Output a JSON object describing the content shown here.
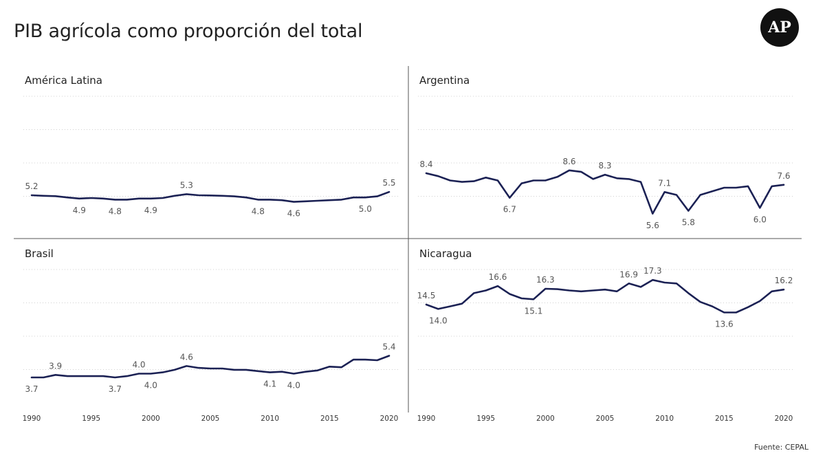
{
  "title": "PIB agrícola como proporción del total",
  "logo": "AP",
  "source": "Fuente: CEPAL",
  "colors": {
    "line": "#1b2154",
    "grid": "#d0d0d0",
    "divider": "#555555",
    "text": "#555555"
  },
  "chart_data": [
    {
      "type": "line",
      "title": "América Latina",
      "x": [
        1990,
        1991,
        1992,
        1993,
        1994,
        1995,
        1996,
        1997,
        1998,
        1999,
        2000,
        2001,
        2002,
        2003,
        2004,
        2005,
        2006,
        2007,
        2008,
        2009,
        2010,
        2011,
        2012,
        2013,
        2014,
        2015,
        2016,
        2017,
        2018,
        2019,
        2020
      ],
      "values": [
        5.2,
        5.15,
        5.12,
        5.0,
        4.9,
        4.95,
        4.9,
        4.8,
        4.8,
        4.9,
        4.9,
        4.95,
        5.15,
        5.3,
        5.2,
        5.18,
        5.15,
        5.1,
        5.0,
        4.8,
        4.8,
        4.75,
        4.6,
        4.65,
        4.7,
        4.75,
        4.8,
        5.0,
        5.0,
        5.1,
        5.5
      ],
      "labels": [
        {
          "year": 1990,
          "text": "5.2",
          "pos": "above"
        },
        {
          "year": 1994,
          "text": "4.9",
          "pos": "below"
        },
        {
          "year": 1997,
          "text": "4.8",
          "pos": "below"
        },
        {
          "year": 2000,
          "text": "4.9",
          "pos": "below"
        },
        {
          "year": 2003,
          "text": "5.3",
          "pos": "above"
        },
        {
          "year": 2009,
          "text": "4.8",
          "pos": "below"
        },
        {
          "year": 2012,
          "text": "4.6",
          "pos": "below"
        },
        {
          "year": 2018,
          "text": "5.0",
          "pos": "below"
        },
        {
          "year": 2020,
          "text": "5.5",
          "pos": "above"
        }
      ]
    },
    {
      "type": "line",
      "title": "Argentina",
      "x": [
        1990,
        1991,
        1992,
        1993,
        1994,
        1995,
        1996,
        1997,
        1998,
        1999,
        2000,
        2001,
        2002,
        2003,
        2004,
        2005,
        2006,
        2007,
        2008,
        2009,
        2010,
        2011,
        2012,
        2013,
        2014,
        2015,
        2016,
        2017,
        2018,
        2019,
        2020
      ],
      "values": [
        8.4,
        8.2,
        7.9,
        7.8,
        7.85,
        8.1,
        7.9,
        6.7,
        7.7,
        7.9,
        7.9,
        8.15,
        8.6,
        8.5,
        8.0,
        8.3,
        8.05,
        8.0,
        7.8,
        5.6,
        7.1,
        6.9,
        5.8,
        6.9,
        7.15,
        7.4,
        7.4,
        7.5,
        6.0,
        7.5,
        7.6
      ],
      "labels": [
        {
          "year": 1990,
          "text": "8.4",
          "pos": "above"
        },
        {
          "year": 1997,
          "text": "6.7",
          "pos": "below"
        },
        {
          "year": 2002,
          "text": "8.6",
          "pos": "above"
        },
        {
          "year": 2005,
          "text": "8.3",
          "pos": "above"
        },
        {
          "year": 2009,
          "text": "5.6",
          "pos": "below"
        },
        {
          "year": 2010,
          "text": "7.1",
          "pos": "above"
        },
        {
          "year": 2012,
          "text": "5.8",
          "pos": "below"
        },
        {
          "year": 2018,
          "text": "6.0",
          "pos": "below"
        },
        {
          "year": 2020,
          "text": "7.6",
          "pos": "above"
        }
      ]
    },
    {
      "type": "line",
      "title": "Brasil",
      "x": [
        1990,
        1991,
        1992,
        1993,
        1994,
        1995,
        1996,
        1997,
        1998,
        1999,
        2000,
        2001,
        2002,
        2003,
        2004,
        2005,
        2006,
        2007,
        2008,
        2009,
        2010,
        2011,
        2012,
        2013,
        2014,
        2015,
        2016,
        2017,
        2018,
        2019,
        2020
      ],
      "values": [
        3.7,
        3.7,
        3.9,
        3.8,
        3.8,
        3.8,
        3.8,
        3.7,
        3.8,
        4.0,
        4.0,
        4.1,
        4.3,
        4.6,
        4.45,
        4.4,
        4.4,
        4.3,
        4.3,
        4.2,
        4.1,
        4.15,
        4.0,
        4.15,
        4.25,
        4.55,
        4.5,
        5.1,
        5.1,
        5.05,
        5.4
      ],
      "labels": [
        {
          "year": 1990,
          "text": "3.7",
          "pos": "below"
        },
        {
          "year": 1992,
          "text": "3.9",
          "pos": "above"
        },
        {
          "year": 1997,
          "text": "3.7",
          "pos": "below"
        },
        {
          "year": 1999,
          "text": "4.0",
          "pos": "above"
        },
        {
          "year": 2000,
          "text": "4.0",
          "pos": "below"
        },
        {
          "year": 2003,
          "text": "4.6",
          "pos": "above"
        },
        {
          "year": 2010,
          "text": "4.1",
          "pos": "below"
        },
        {
          "year": 2012,
          "text": "4.0",
          "pos": "below"
        },
        {
          "year": 2020,
          "text": "5.4",
          "pos": "above"
        }
      ]
    },
    {
      "type": "line",
      "title": "Nicaragua",
      "x": [
        1990,
        1991,
        1992,
        1993,
        1994,
        1995,
        1996,
        1997,
        1998,
        1999,
        2000,
        2001,
        2002,
        2003,
        2004,
        2005,
        2006,
        2007,
        2008,
        2009,
        2010,
        2011,
        2012,
        2013,
        2014,
        2015,
        2016,
        2017,
        2018,
        2019,
        2020
      ],
      "values": [
        14.5,
        14.0,
        14.3,
        14.6,
        15.8,
        16.1,
        16.6,
        15.7,
        15.2,
        15.1,
        16.3,
        16.25,
        16.1,
        16.0,
        16.1,
        16.2,
        16.0,
        16.9,
        16.5,
        17.3,
        17.0,
        16.9,
        15.8,
        14.8,
        14.3,
        13.6,
        13.6,
        14.2,
        14.9,
        16.0,
        16.2
      ],
      "labels": [
        {
          "year": 1990,
          "text": "14.5",
          "pos": "above"
        },
        {
          "year": 1991,
          "text": "14.0",
          "pos": "below"
        },
        {
          "year": 1996,
          "text": "16.6",
          "pos": "above"
        },
        {
          "year": 1999,
          "text": "15.1",
          "pos": "below"
        },
        {
          "year": 2000,
          "text": "16.3",
          "pos": "above"
        },
        {
          "year": 2007,
          "text": "16.9",
          "pos": "above"
        },
        {
          "year": 2009,
          "text": "17.3",
          "pos": "above"
        },
        {
          "year": 2015,
          "text": "13.6",
          "pos": "below"
        },
        {
          "year": 2020,
          "text": "16.2",
          "pos": "above"
        }
      ]
    }
  ],
  "x_ticks": [
    "1990",
    "1995",
    "2000",
    "2005",
    "2010",
    "2015",
    "2020"
  ]
}
